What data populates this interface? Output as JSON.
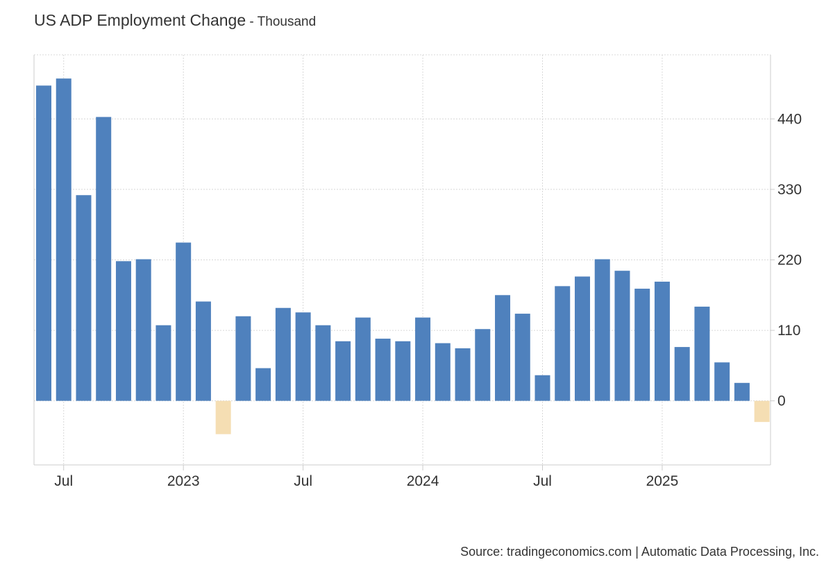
{
  "header": {
    "title": "US ADP Employment Change",
    "separator": " - ",
    "unit": "Thousand"
  },
  "footer": {
    "source": "Source: tradingeconomics.com | Automatic Data Processing, Inc."
  },
  "colors": {
    "positive_bar": "#4f81bd",
    "negative_bar": "#f5deb3",
    "grid": "#d8d8d8",
    "axis": "#cccccc",
    "text": "#333333"
  },
  "chart_data": {
    "type": "bar",
    "title": "US ADP Employment Change",
    "unit": "Thousand",
    "xlabel": "",
    "ylabel": "",
    "ylim": [
      -100,
      540
    ],
    "y_ticks": [
      0,
      110,
      220,
      330,
      440
    ],
    "y_axis_side": "right",
    "grid": true,
    "x_tick_labels": [
      "Jul",
      "2023",
      "Jul",
      "2024",
      "Jul",
      "2025"
    ],
    "categories": [
      "2022-06",
      "2022-07",
      "2022-08",
      "2022-09",
      "2022-10",
      "2022-11",
      "2022-12",
      "2023-01",
      "2023-02",
      "2023-03",
      "2023-04",
      "2023-05",
      "2023-06",
      "2023-07",
      "2023-08",
      "2023-09",
      "2023-10",
      "2023-11",
      "2023-12",
      "2024-01",
      "2024-02",
      "2024-03",
      "2024-04",
      "2024-05",
      "2024-06",
      "2024-07",
      "2024-08",
      "2024-09",
      "2024-10",
      "2024-11",
      "2024-12",
      "2025-01",
      "2025-02",
      "2025-03",
      "2025-04",
      "2025-05",
      "2025-06"
    ],
    "values": [
      492,
      503,
      321,
      443,
      218,
      221,
      118,
      247,
      155,
      -52,
      132,
      51,
      145,
      138,
      118,
      93,
      130,
      97,
      93,
      130,
      90,
      82,
      112,
      165,
      136,
      40,
      179,
      194,
      221,
      203,
      175,
      186,
      84,
      147,
      60,
      28,
      -33
    ]
  }
}
